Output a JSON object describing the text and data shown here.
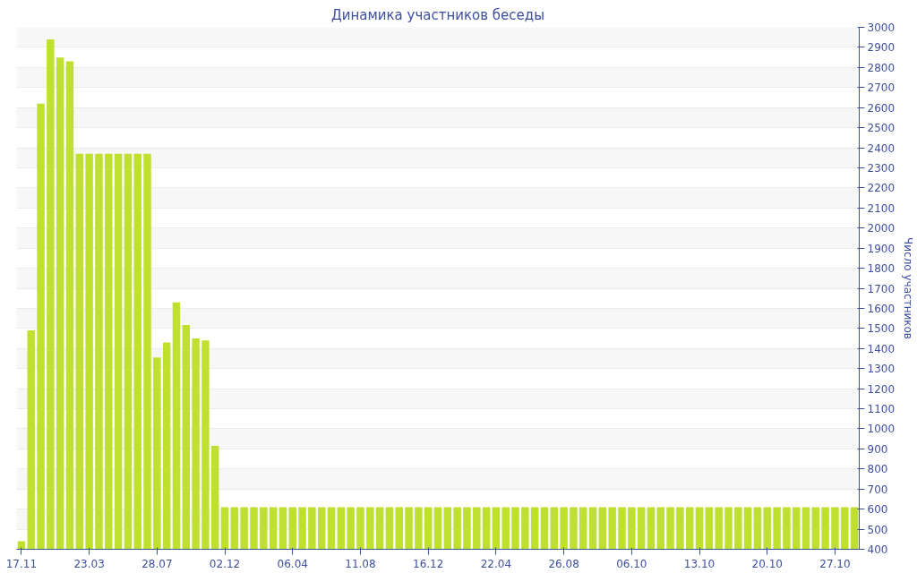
{
  "chart_data": {
    "type": "bar",
    "title": "Динамика участников беседы",
    "ylabel": "Число участников",
    "categories": [
      "17.11",
      null,
      null,
      null,
      null,
      null,
      null,
      "23.03",
      null,
      null,
      null,
      null,
      null,
      null,
      "28.07",
      null,
      null,
      null,
      null,
      null,
      null,
      "02.12",
      null,
      null,
      null,
      null,
      null,
      null,
      "06.04",
      null,
      null,
      null,
      null,
      null,
      null,
      "11.08",
      null,
      null,
      null,
      null,
      null,
      null,
      "16.12",
      null,
      null,
      null,
      null,
      null,
      null,
      "22.04",
      null,
      null,
      null,
      null,
      null,
      null,
      "26.08",
      null,
      null,
      null,
      null,
      null,
      null,
      "06.10",
      null,
      null,
      null,
      null,
      null,
      null,
      "13.10",
      null,
      null,
      null,
      null,
      null,
      null,
      "20.10",
      null,
      null,
      null,
      null,
      null,
      null,
      "27.10",
      null,
      null
    ],
    "values": [
      440,
      1490,
      2620,
      2940,
      2850,
      2830,
      2370,
      2370,
      2370,
      2370,
      2370,
      2370,
      2370,
      2370,
      1355,
      1430,
      1630,
      1517,
      1450,
      1440,
      915,
      610,
      610,
      610,
      610,
      610,
      610,
      610,
      610,
      610,
      610,
      610,
      610,
      610,
      610,
      610,
      610,
      610,
      610,
      610,
      610,
      610,
      610,
      610,
      610,
      610,
      610,
      610,
      610,
      610,
      610,
      610,
      610,
      610,
      610,
      610,
      610,
      610,
      610,
      610,
      610,
      610,
      610,
      610,
      610,
      610,
      610,
      610,
      610,
      610,
      610,
      610,
      610,
      610,
      610,
      610,
      610,
      610,
      610,
      610,
      610,
      610,
      610,
      610,
      610,
      610,
      610
    ],
    "color": "#bfe02e",
    "ylim": [
      400,
      3000
    ],
    "yticks": [
      400,
      500,
      600,
      700,
      800,
      900,
      1000,
      1100,
      1200,
      1300,
      1400,
      1500,
      1600,
      1700,
      1800,
      1900,
      2000,
      2100,
      2200,
      2300,
      2400,
      2500,
      2600,
      2700,
      2800,
      2900,
      3000
    ],
    "grid": "y"
  }
}
